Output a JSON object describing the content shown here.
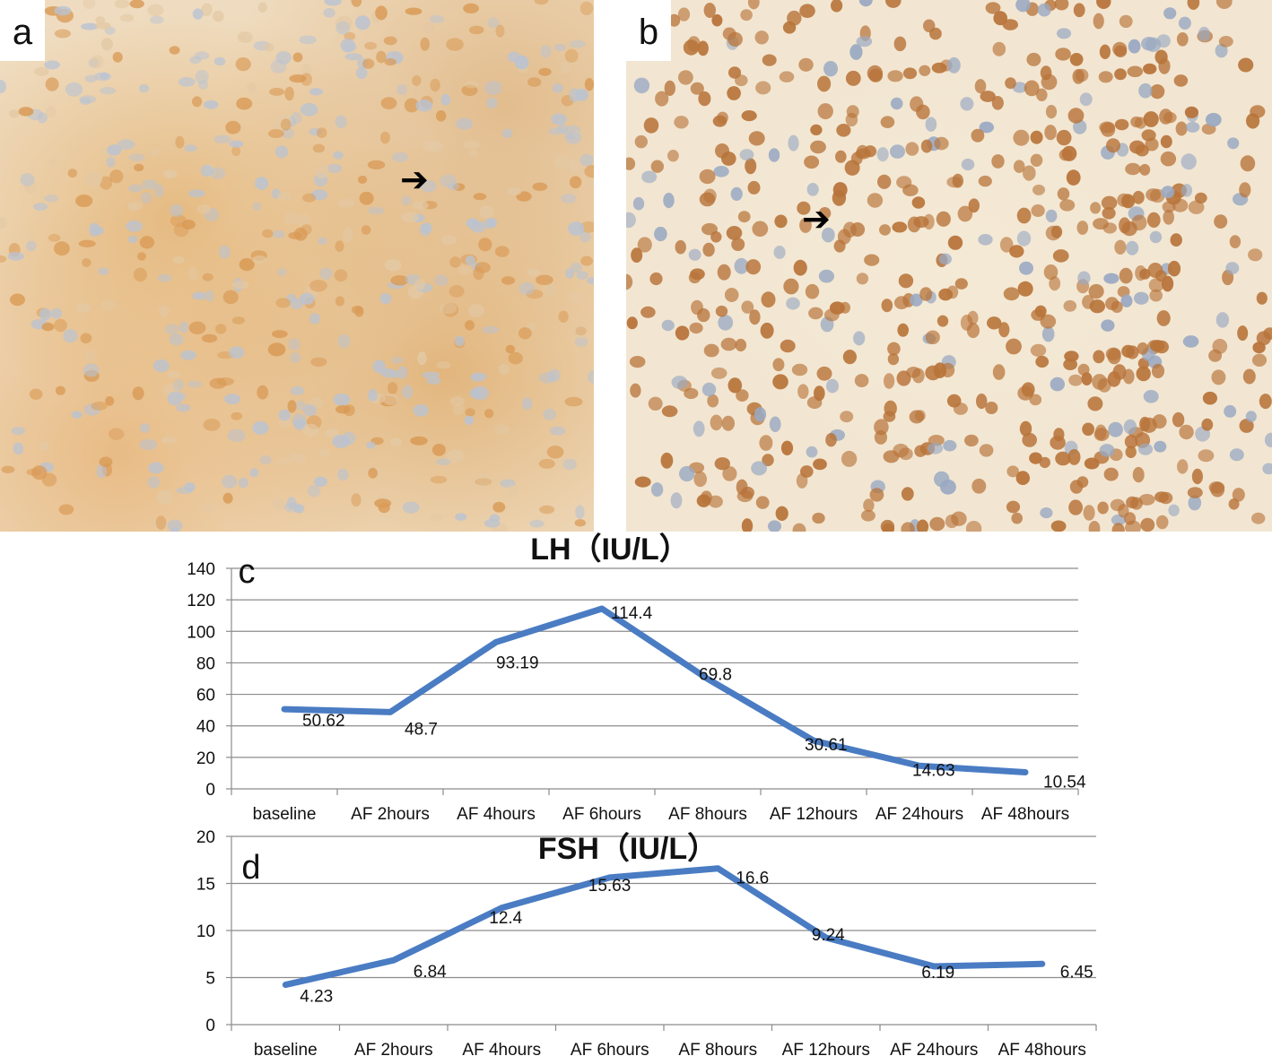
{
  "panels": {
    "a": {
      "letter": "a",
      "arrow_glyph": "➔",
      "arrow_icon": "right-arrow-icon"
    },
    "b": {
      "letter": "b",
      "arrow_glyph": "➔",
      "arrow_icon": "right-arrow-icon"
    }
  },
  "colors": {
    "line": "#4a7cc3",
    "grid": "#8c8c8c",
    "axis": "#8c8c8c"
  },
  "chart_data": [
    {
      "type": "line",
      "panel": "c",
      "title": "LH（IU/L）",
      "categories": [
        "baseline",
        "AF 2hours",
        "AF 4hours",
        "AF 6hours",
        "AF 8hours",
        "AF 12hours",
        "AF 24hours",
        "AF 48hours"
      ],
      "values": [
        50.62,
        48.7,
        93.19,
        114.4,
        69.8,
        30.61,
        14.63,
        10.54
      ],
      "labels": [
        "50.62",
        "48.7",
        "93.19",
        "114.4",
        "69.8",
        "30.61",
        "14.63",
        "10.54"
      ],
      "ylim": [
        0,
        140
      ],
      "yticks": [
        0,
        20,
        40,
        60,
        80,
        100,
        120,
        140
      ],
      "grid": true
    },
    {
      "type": "line",
      "panel": "d",
      "title": "FSH（IU/L）",
      "categories": [
        "baseline",
        "AF 2hours",
        "AF 4hours",
        "AF 6hours",
        "AF 8hours",
        "AF 12hours",
        "AF 24hours",
        "AF 48hours"
      ],
      "values": [
        4.23,
        6.84,
        12.4,
        15.63,
        16.6,
        9.24,
        6.19,
        6.45
      ],
      "labels": [
        "4.23",
        "6.84",
        "12.4",
        "15.63",
        "16.6",
        "9.24",
        "6.19",
        "6.45"
      ],
      "ylim": [
        0,
        20
      ],
      "yticks": [
        0,
        5,
        10,
        15,
        20
      ],
      "grid": true
    }
  ]
}
